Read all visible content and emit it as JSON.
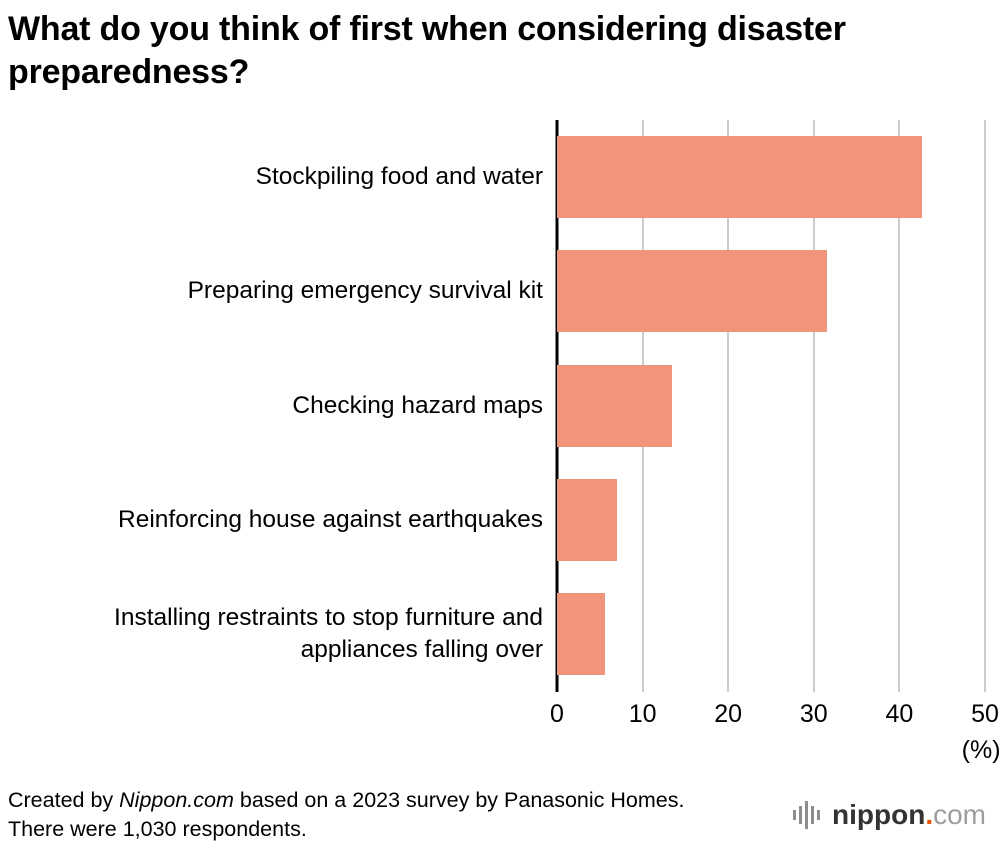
{
  "chart_data": {
    "type": "bar",
    "orientation": "horizontal",
    "title": "What do you think of first when considering disaster preparedness?",
    "categories": [
      "Stockpiling food and water",
      "Preparing emergency survival kit",
      "Checking hazard maps",
      "Reinforcing house against earthquakes",
      "Installing restraints to stop furniture and appliances falling over"
    ],
    "values": [
      42.6,
      31.5,
      13.4,
      7.0,
      5.6
    ],
    "xlabel": "",
    "ylabel": "",
    "xlim": [
      0,
      50
    ],
    "x_ticks": [
      0,
      10,
      20,
      30,
      40,
      50
    ],
    "x_unit_label": "(%)",
    "bar_color": "#f0947c",
    "grid": true,
    "legend": "none"
  },
  "footer": {
    "credit_prefix": "Created by ",
    "credit_source": "Nippon.com",
    "credit_suffix": " based on a 2023 survey by Panasonic Homes. There were 1,030 respondents.",
    "logo": {
      "name": "nippon",
      "dot": ".",
      "tld": "com"
    }
  }
}
